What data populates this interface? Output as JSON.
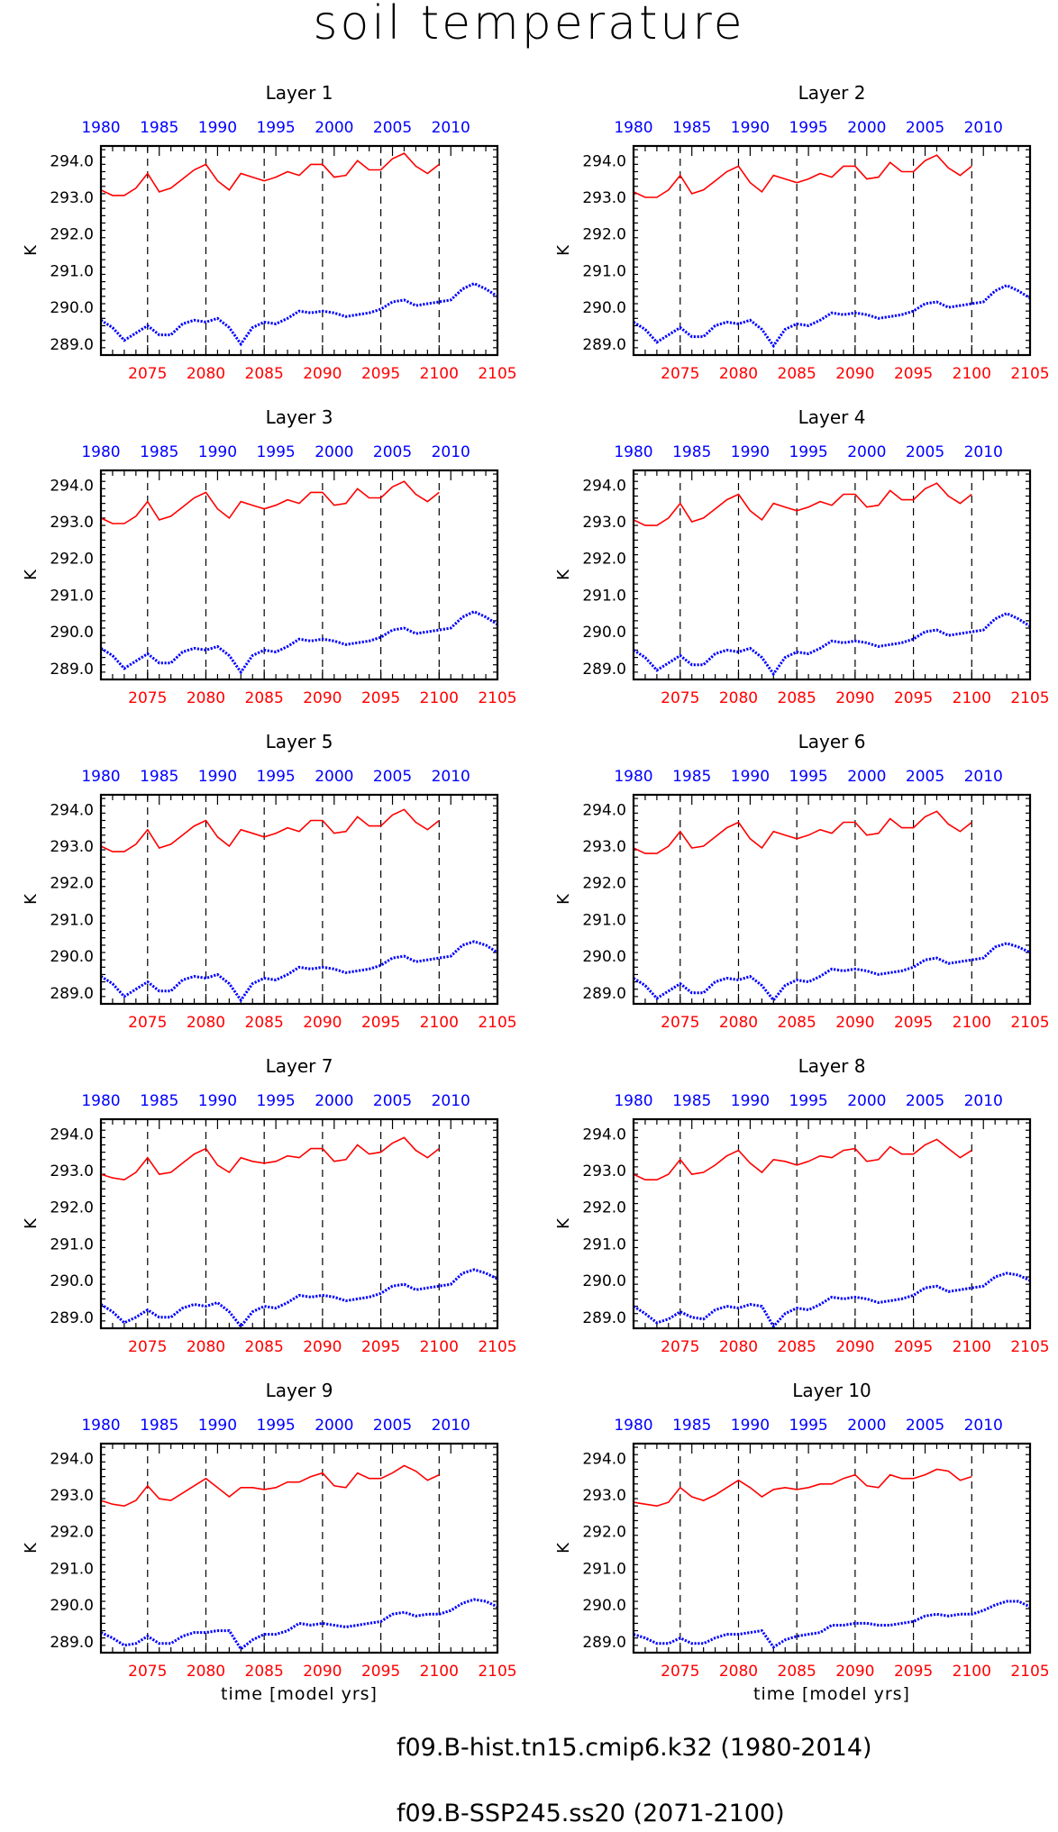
{
  "title": "soil temperature",
  "legend": [
    {
      "label": "f09.B-hist.tn15.cmip6.k32 (1980-2014)",
      "color": "#0000ff",
      "style": "dashed"
    },
    {
      "label": "f09.B-SSP245.ss20 (2071-2100)",
      "color": "#ff0000",
      "style": "solid"
    }
  ],
  "chart_data": {
    "type": "line",
    "title": "soil temperature",
    "xlabel_bottom": "time [model yrs]",
    "ylabel": "K",
    "ylim": [
      288.7,
      294.4
    ],
    "yticks": [
      289.0,
      290.0,
      291.0,
      292.0,
      293.0,
      294.0
    ],
    "xlim_bottom": [
      2071,
      2105
    ],
    "xticks_bottom": [
      2075,
      2080,
      2085,
      2090,
      2095,
      2100,
      2105
    ],
    "xlim_top": [
      1980,
      2014
    ],
    "xticks_top": [
      1980,
      1985,
      1990,
      1995,
      2000,
      2005,
      2010
    ],
    "vertical_dashed_lines": [
      2075,
      2080,
      2085,
      2090,
      2095,
      2100
    ],
    "hist_x": [
      1980,
      1981,
      1982,
      1983,
      1984,
      1985,
      1986,
      1987,
      1988,
      1989,
      1990,
      1991,
      1992,
      1993,
      1994,
      1995,
      1996,
      1997,
      1998,
      1999,
      2000,
      2001,
      2002,
      2003,
      2004,
      2005,
      2006,
      2007,
      2008,
      2009,
      2010,
      2011,
      2012,
      2013,
      2014
    ],
    "ssp_x": [
      2071,
      2072,
      2073,
      2074,
      2075,
      2076,
      2077,
      2078,
      2079,
      2080,
      2081,
      2082,
      2083,
      2084,
      2085,
      2086,
      2087,
      2088,
      2089,
      2090,
      2091,
      2092,
      2093,
      2094,
      2095,
      2096,
      2097,
      2098,
      2099,
      2100
    ],
    "panels": [
      {
        "title": "Layer 1",
        "hist": [
          289.65,
          289.45,
          289.1,
          289.3,
          289.5,
          289.25,
          289.25,
          289.55,
          289.65,
          289.6,
          289.7,
          289.45,
          289.0,
          289.45,
          289.6,
          289.55,
          289.7,
          289.9,
          289.85,
          289.9,
          289.85,
          289.75,
          289.8,
          289.85,
          289.95,
          290.15,
          290.2,
          290.05,
          290.1,
          290.15,
          290.2,
          290.5,
          290.65,
          290.5,
          290.3
        ],
        "ssp": [
          293.2,
          293.05,
          293.05,
          293.25,
          293.65,
          293.15,
          293.25,
          293.5,
          293.75,
          293.9,
          293.45,
          293.2,
          293.65,
          293.55,
          293.45,
          293.55,
          293.7,
          293.6,
          293.9,
          293.9,
          293.55,
          293.6,
          294.0,
          293.75,
          293.75,
          294.05,
          294.2,
          293.85,
          293.65,
          293.9
        ]
      },
      {
        "title": "Layer 2",
        "hist": [
          289.6,
          289.4,
          289.05,
          289.25,
          289.45,
          289.2,
          289.2,
          289.5,
          289.6,
          289.55,
          289.65,
          289.4,
          288.95,
          289.4,
          289.55,
          289.5,
          289.65,
          289.85,
          289.8,
          289.85,
          289.8,
          289.7,
          289.75,
          289.8,
          289.9,
          290.1,
          290.15,
          290.0,
          290.05,
          290.1,
          290.15,
          290.45,
          290.6,
          290.45,
          290.25
        ],
        "ssp": [
          293.15,
          293.0,
          293.0,
          293.2,
          293.6,
          293.1,
          293.2,
          293.45,
          293.7,
          293.85,
          293.4,
          293.15,
          293.6,
          293.5,
          293.4,
          293.5,
          293.65,
          293.55,
          293.85,
          293.85,
          293.5,
          293.55,
          293.95,
          293.7,
          293.7,
          294.0,
          294.15,
          293.8,
          293.6,
          293.85
        ]
      },
      {
        "title": "Layer 3",
        "hist": [
          289.55,
          289.35,
          289.0,
          289.2,
          289.4,
          289.15,
          289.15,
          289.45,
          289.55,
          289.5,
          289.6,
          289.35,
          288.9,
          289.35,
          289.5,
          289.45,
          289.6,
          289.8,
          289.75,
          289.8,
          289.75,
          289.65,
          289.7,
          289.75,
          289.85,
          290.05,
          290.1,
          289.95,
          290.0,
          290.05,
          290.1,
          290.4,
          290.55,
          290.4,
          290.2
        ],
        "ssp": [
          293.1,
          292.95,
          292.95,
          293.15,
          293.55,
          293.05,
          293.15,
          293.4,
          293.65,
          293.8,
          293.35,
          293.1,
          293.55,
          293.45,
          293.35,
          293.45,
          293.6,
          293.5,
          293.8,
          293.8,
          293.45,
          293.5,
          293.9,
          293.65,
          293.65,
          293.95,
          294.1,
          293.75,
          293.55,
          293.8
        ]
      },
      {
        "title": "Layer 4",
        "hist": [
          289.5,
          289.3,
          288.95,
          289.15,
          289.35,
          289.1,
          289.1,
          289.4,
          289.5,
          289.45,
          289.55,
          289.3,
          288.85,
          289.3,
          289.45,
          289.4,
          289.55,
          289.75,
          289.7,
          289.75,
          289.7,
          289.6,
          289.65,
          289.7,
          289.8,
          290.0,
          290.05,
          289.9,
          289.95,
          290.0,
          290.05,
          290.35,
          290.5,
          290.35,
          290.15
        ],
        "ssp": [
          293.05,
          292.9,
          292.9,
          293.1,
          293.5,
          293.0,
          293.1,
          293.35,
          293.6,
          293.75,
          293.3,
          293.05,
          293.5,
          293.4,
          293.3,
          293.4,
          293.55,
          293.45,
          293.75,
          293.75,
          293.4,
          293.45,
          293.85,
          293.6,
          293.6,
          293.9,
          294.05,
          293.7,
          293.5,
          293.75
        ]
      },
      {
        "title": "Layer 5",
        "hist": [
          289.45,
          289.25,
          288.9,
          289.1,
          289.3,
          289.05,
          289.05,
          289.35,
          289.45,
          289.4,
          289.5,
          289.25,
          288.8,
          289.25,
          289.4,
          289.35,
          289.5,
          289.7,
          289.65,
          289.7,
          289.65,
          289.55,
          289.6,
          289.65,
          289.75,
          289.95,
          290.0,
          289.85,
          289.9,
          289.95,
          290.0,
          290.3,
          290.4,
          290.3,
          290.1
        ],
        "ssp": [
          293.0,
          292.85,
          292.85,
          293.05,
          293.45,
          292.95,
          293.05,
          293.3,
          293.55,
          293.7,
          293.25,
          293.0,
          293.45,
          293.35,
          293.25,
          293.35,
          293.5,
          293.4,
          293.7,
          293.7,
          293.35,
          293.4,
          293.8,
          293.55,
          293.55,
          293.85,
          294.0,
          293.65,
          293.45,
          293.7
        ]
      },
      {
        "title": "Layer 6",
        "hist": [
          289.4,
          289.2,
          288.85,
          289.05,
          289.25,
          289.0,
          289.0,
          289.3,
          289.4,
          289.35,
          289.45,
          289.2,
          288.8,
          289.2,
          289.35,
          289.3,
          289.45,
          289.65,
          289.6,
          289.65,
          289.6,
          289.5,
          289.55,
          289.6,
          289.7,
          289.9,
          289.95,
          289.8,
          289.85,
          289.9,
          289.95,
          290.25,
          290.35,
          290.25,
          290.1
        ],
        "ssp": [
          292.95,
          292.8,
          292.8,
          293.0,
          293.4,
          292.95,
          293.0,
          293.25,
          293.5,
          293.65,
          293.2,
          292.95,
          293.4,
          293.3,
          293.2,
          293.3,
          293.45,
          293.35,
          293.65,
          293.65,
          293.3,
          293.35,
          293.75,
          293.5,
          293.5,
          293.8,
          293.95,
          293.6,
          293.4,
          293.65
        ]
      },
      {
        "title": "Layer 7",
        "hist": [
          289.35,
          289.15,
          288.85,
          289.0,
          289.2,
          289.0,
          289.0,
          289.25,
          289.35,
          289.3,
          289.4,
          289.15,
          288.75,
          289.15,
          289.3,
          289.25,
          289.4,
          289.6,
          289.55,
          289.6,
          289.55,
          289.45,
          289.5,
          289.55,
          289.65,
          289.85,
          289.9,
          289.75,
          289.8,
          289.85,
          289.9,
          290.2,
          290.3,
          290.2,
          290.05
        ],
        "ssp": [
          292.9,
          292.8,
          292.75,
          292.95,
          293.35,
          292.9,
          292.95,
          293.2,
          293.45,
          293.6,
          293.15,
          292.95,
          293.35,
          293.25,
          293.2,
          293.25,
          293.4,
          293.35,
          293.6,
          293.6,
          293.25,
          293.3,
          293.7,
          293.45,
          293.5,
          293.75,
          293.9,
          293.55,
          293.35,
          293.6
        ]
      },
      {
        "title": "Layer 8",
        "hist": [
          289.3,
          289.1,
          288.85,
          288.95,
          289.15,
          289.0,
          288.95,
          289.2,
          289.3,
          289.25,
          289.35,
          289.3,
          288.75,
          289.1,
          289.25,
          289.2,
          289.35,
          289.55,
          289.5,
          289.55,
          289.5,
          289.4,
          289.45,
          289.5,
          289.6,
          289.8,
          289.85,
          289.7,
          289.75,
          289.8,
          289.85,
          290.1,
          290.2,
          290.15,
          290.0
        ],
        "ssp": [
          292.9,
          292.75,
          292.75,
          292.9,
          293.3,
          292.9,
          292.95,
          293.15,
          293.4,
          293.55,
          293.2,
          292.95,
          293.3,
          293.25,
          293.15,
          293.25,
          293.4,
          293.35,
          293.55,
          293.6,
          293.25,
          293.3,
          293.65,
          293.45,
          293.45,
          293.7,
          293.85,
          293.6,
          293.35,
          293.55
        ]
      },
      {
        "title": "Layer 9",
        "hist": [
          289.25,
          289.1,
          288.9,
          288.95,
          289.15,
          288.95,
          288.95,
          289.15,
          289.25,
          289.25,
          289.3,
          289.3,
          288.8,
          289.05,
          289.2,
          289.2,
          289.3,
          289.5,
          289.45,
          289.5,
          289.45,
          289.4,
          289.45,
          289.5,
          289.55,
          289.75,
          289.8,
          289.7,
          289.75,
          289.75,
          289.85,
          290.05,
          290.15,
          290.1,
          289.95
        ],
        "ssp": [
          292.85,
          292.75,
          292.7,
          292.85,
          293.25,
          292.9,
          292.85,
          293.05,
          293.25,
          293.45,
          293.2,
          292.95,
          293.2,
          293.2,
          293.15,
          293.2,
          293.35,
          293.35,
          293.5,
          293.6,
          293.25,
          293.2,
          293.6,
          293.45,
          293.45,
          293.6,
          293.8,
          293.65,
          293.4,
          293.55
        ]
      },
      {
        "title": "Layer 10",
        "hist": [
          289.2,
          289.1,
          288.95,
          288.95,
          289.1,
          288.95,
          288.95,
          289.1,
          289.2,
          289.2,
          289.25,
          289.3,
          288.85,
          289.05,
          289.15,
          289.2,
          289.25,
          289.45,
          289.45,
          289.5,
          289.5,
          289.45,
          289.45,
          289.5,
          289.55,
          289.7,
          289.75,
          289.7,
          289.75,
          289.75,
          289.85,
          290.0,
          290.1,
          290.1,
          289.95
        ],
        "ssp": [
          292.8,
          292.75,
          292.7,
          292.8,
          293.2,
          292.95,
          292.85,
          293.0,
          293.2,
          293.4,
          293.2,
          292.95,
          293.15,
          293.2,
          293.15,
          293.2,
          293.3,
          293.3,
          293.45,
          293.55,
          293.25,
          293.2,
          293.55,
          293.45,
          293.45,
          293.55,
          293.7,
          293.65,
          293.4,
          293.5
        ]
      }
    ]
  }
}
